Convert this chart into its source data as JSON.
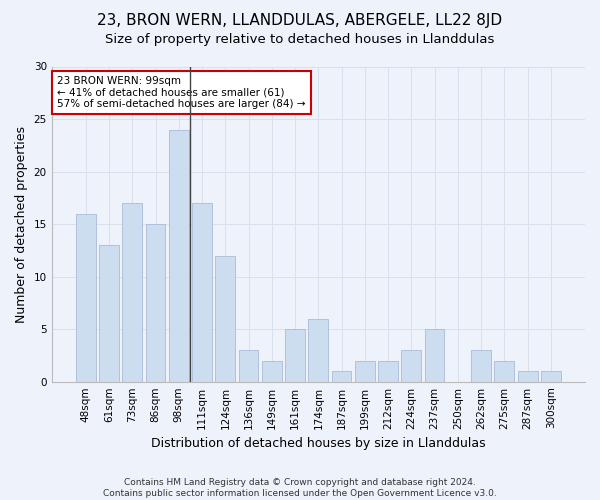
{
  "title": "23, BRON WERN, LLANDDULAS, ABERGELE, LL22 8JD",
  "subtitle": "Size of property relative to detached houses in Llanddulas",
  "xlabel": "Distribution of detached houses by size in Llanddulas",
  "ylabel": "Number of detached properties",
  "categories": [
    "48sqm",
    "61sqm",
    "73sqm",
    "86sqm",
    "98sqm",
    "111sqm",
    "124sqm",
    "136sqm",
    "149sqm",
    "161sqm",
    "174sqm",
    "187sqm",
    "199sqm",
    "212sqm",
    "224sqm",
    "237sqm",
    "250sqm",
    "262sqm",
    "275sqm",
    "287sqm",
    "300sqm"
  ],
  "values": [
    16,
    13,
    17,
    15,
    24,
    17,
    12,
    3,
    2,
    5,
    6,
    1,
    2,
    2,
    3,
    5,
    0,
    3,
    2,
    1,
    1
  ],
  "bar_color": "#ccddf0",
  "bar_edge_color": "#aabbd8",
  "grid_color": "#d8e0ec",
  "annotation_box_text": "23 BRON WERN: 99sqm\n← 41% of detached houses are smaller (61)\n57% of semi-detached houses are larger (84) →",
  "annotation_box_color": "#ffffff",
  "annotation_box_edge_color": "#cc0000",
  "vline_x": 4.5,
  "vline_color": "#444444",
  "ylim": [
    0,
    30
  ],
  "yticks": [
    0,
    5,
    10,
    15,
    20,
    25,
    30
  ],
  "footer": "Contains HM Land Registry data © Crown copyright and database right 2024.\nContains public sector information licensed under the Open Government Licence v3.0.",
  "bg_color": "#eef2fb",
  "title_fontsize": 11,
  "subtitle_fontsize": 9.5,
  "xlabel_fontsize": 9,
  "ylabel_fontsize": 9,
  "tick_fontsize": 7.5,
  "footer_fontsize": 6.5,
  "annot_fontsize": 7.5
}
